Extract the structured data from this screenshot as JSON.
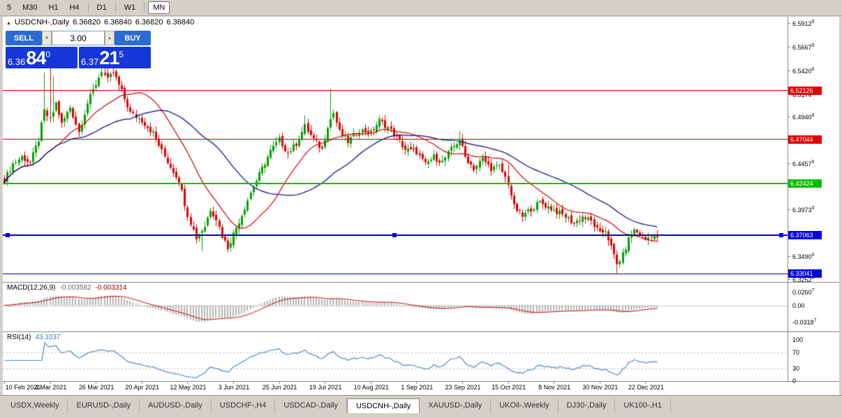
{
  "toolbar": {
    "items": [
      {
        "label": "5",
        "active": false,
        "sep_after": false
      },
      {
        "label": "M30",
        "active": false,
        "sep_after": false
      },
      {
        "label": "H1",
        "active": false,
        "sep_after": false
      },
      {
        "label": "H4",
        "active": false,
        "sep_after": true
      },
      {
        "label": "D1",
        "active": false,
        "sep_after": true
      },
      {
        "label": "W1",
        "active": false,
        "sep_after": true
      },
      {
        "label": "MN",
        "active": true,
        "sep_after": false
      }
    ]
  },
  "icons": {
    "chart_symbol": "▲",
    "volume_down": "▼",
    "volume_up": "▲"
  },
  "chart_header": {
    "symbol": "USDCNH-,Daily",
    "open": "6.36820",
    "high": "6.36840",
    "low": "6.36820",
    "close": "6.36840"
  },
  "trade_panel": {
    "sell_label": "SELL",
    "buy_label": "BUY",
    "volume": "3.00",
    "bid_prefix": "6.36",
    "bid_big": "84",
    "bid_sup": "0",
    "ask_prefix": "6.37",
    "ask_big": "21",
    "ask_sup": "5",
    "button_color": "#2b6bd5",
    "box_color": "#1536d8"
  },
  "tabs": [
    {
      "label": "USDX,Weekly",
      "active": false
    },
    {
      "label": "EURUSD-,Daily",
      "active": false
    },
    {
      "label": "AUDUSD-,Daily",
      "active": false
    },
    {
      "label": "USDCHF-,H4",
      "active": false
    },
    {
      "label": "USDCAD-,Daily",
      "active": false
    },
    {
      "label": "USDCNH-,Daily",
      "active": true
    },
    {
      "label": "XAUUSD-,Daily",
      "active": false
    },
    {
      "label": "UKOil-,Weekly",
      "active": false
    },
    {
      "label": "DJ30-,Daily",
      "active": false
    },
    {
      "label": "UK100-,H1",
      "active": false
    }
  ],
  "chart_data": {
    "type": "candlestick",
    "symbol": "USDCNH-",
    "timeframe": "Daily",
    "bars_total": 229,
    "last_close": 6.3684,
    "noise": 0.006,
    "price_range": [
      6.322,
      6.598
    ],
    "candle_colors": {
      "up": "#00a000",
      "down": "#e00000"
    },
    "ma": [
      {
        "period": 20,
        "color": "#cc0000"
      },
      {
        "period": 45,
        "color": "#000080"
      }
    ],
    "waypoints": [
      [
        0,
        6.428
      ],
      [
        3,
        6.445
      ],
      [
        6,
        6.452
      ],
      [
        9,
        6.446
      ],
      [
        12,
        6.47
      ],
      [
        14,
        6.5
      ],
      [
        16,
        6.49
      ],
      [
        18,
        6.508
      ],
      [
        20,
        6.486
      ],
      [
        23,
        6.504
      ],
      [
        26,
        6.478
      ],
      [
        29,
        6.508
      ],
      [
        32,
        6.528
      ],
      [
        34,
        6.542
      ],
      [
        36,
        6.532
      ],
      [
        38,
        6.54
      ],
      [
        41,
        6.52
      ],
      [
        44,
        6.498
      ],
      [
        48,
        6.49
      ],
      [
        52,
        6.477
      ],
      [
        55,
        6.458
      ],
      [
        58,
        6.442
      ],
      [
        61,
        6.428
      ],
      [
        64,
        6.392
      ],
      [
        67,
        6.368
      ],
      [
        70,
        6.38
      ],
      [
        72,
        6.398
      ],
      [
        74,
        6.388
      ],
      [
        76,
        6.37
      ],
      [
        78,
        6.358
      ],
      [
        80,
        6.372
      ],
      [
        83,
        6.392
      ],
      [
        86,
        6.415
      ],
      [
        90,
        6.44
      ],
      [
        93,
        6.458
      ],
      [
        96,
        6.47
      ],
      [
        99,
        6.456
      ],
      [
        102,
        6.466
      ],
      [
        105,
        6.484
      ],
      [
        108,
        6.47
      ],
      [
        111,
        6.46
      ],
      [
        113,
        6.485
      ],
      [
        115,
        6.498
      ],
      [
        117,
        6.478
      ],
      [
        120,
        6.468
      ],
      [
        124,
        6.48
      ],
      [
        128,
        6.477
      ],
      [
        131,
        6.49
      ],
      [
        134,
        6.483
      ],
      [
        137,
        6.472
      ],
      [
        140,
        6.46
      ],
      [
        144,
        6.457
      ],
      [
        147,
        6.444
      ],
      [
        150,
        6.452
      ],
      [
        153,
        6.447
      ],
      [
        156,
        6.46
      ],
      [
        159,
        6.47
      ],
      [
        161,
        6.452
      ],
      [
        164,
        6.44
      ],
      [
        167,
        6.45
      ],
      [
        170,
        6.44
      ],
      [
        173,
        6.442
      ],
      [
        176,
        6.425
      ],
      [
        178,
        6.4
      ],
      [
        181,
        6.39
      ],
      [
        184,
        6.398
      ],
      [
        187,
        6.405
      ],
      [
        190,
        6.4
      ],
      [
        193,
        6.395
      ],
      [
        196,
        6.39
      ],
      [
        199,
        6.383
      ],
      [
        202,
        6.39
      ],
      [
        205,
        6.385
      ],
      [
        208,
        6.372
      ],
      [
        210,
        6.376
      ],
      [
        212,
        6.358
      ],
      [
        214,
        6.34
      ],
      [
        216,
        6.35
      ],
      [
        218,
        6.366
      ],
      [
        220,
        6.376
      ],
      [
        222,
        6.371
      ],
      [
        224,
        6.366
      ],
      [
        226,
        6.371
      ],
      [
        228,
        6.3684
      ]
    ],
    "wick_overrides": {
      "14": {
        "h": 6.54
      },
      "16": {
        "h": 6.548
      },
      "17": {
        "h": 6.536
      },
      "34": {
        "h": 6.55
      },
      "36": {
        "h": 6.545
      },
      "69": {
        "l": 6.354
      },
      "78": {
        "l": 6.3528
      },
      "105": {
        "h": 6.495
      },
      "114": {
        "h": 6.523
      },
      "159": {
        "h": 6.479
      },
      "176": {
        "h": 6.444
      },
      "213": {
        "l": 6.346
      },
      "214": {
        "l": 6.331
      }
    },
    "hlines": [
      {
        "value": 6.52126,
        "label": "6.52126",
        "color": "#e00000",
        "width": 1,
        "selected": false
      },
      {
        "value": 6.47044,
        "label": "6.47044",
        "color": "#e00000",
        "width": 1,
        "selected": false
      },
      {
        "value": 6.42424,
        "label": "6.42424",
        "color": "#00c000",
        "width": 2,
        "selected": false
      },
      {
        "value": 6.37063,
        "label": "6.37063",
        "color": "#0000e0",
        "width": 2,
        "selected": true
      },
      {
        "value": 6.33041,
        "label": "6.33041",
        "color": "#0000e0",
        "width": 1,
        "selected": false
      }
    ],
    "price_ticks": [
      {
        "label": "6.5912",
        "sup": "0",
        "value": 6.5912
      },
      {
        "label": "6.5667",
        "sup": "0",
        "value": 6.5667
      },
      {
        "label": "6.5420",
        "sup": "0",
        "value": 6.542
      },
      {
        "label": "6.5174",
        "sup": "0",
        "value": 6.5174
      },
      {
        "label": "6.4940",
        "sup": "0",
        "value": 6.494
      },
      {
        "label": "6.4457",
        "sup": "0",
        "value": 6.4457
      },
      {
        "label": "6.3973",
        "sup": "0",
        "value": 6.3973
      },
      {
        "label": "6.3490",
        "sup": "0",
        "value": 6.349
      },
      {
        "label": "6.3252",
        "sup": "0",
        "value": 6.3252
      }
    ],
    "macd": {
      "label": "MACD(12,26,9)",
      "value_main": "-0.003582",
      "value_signal": "-0.003314",
      "fast": 12,
      "slow": 26,
      "signal": 9,
      "hist_color": "#b4b4b4",
      "signal_color": "#cc0000",
      "ticks": [
        {
          "label": "0.0260",
          "sup": "7",
          "value": 0.02607
        },
        {
          "label": "0.00",
          "sup": "",
          "value": 0
        },
        {
          "label": "-0.0318",
          "sup": "7",
          "value": -0.03187
        }
      ]
    },
    "rsi": {
      "label": "RSI(14)",
      "value": "43.1037",
      "period": 14,
      "color": "#4f86c8",
      "levels": [
        70,
        30
      ],
      "ticks": [
        {
          "label": "100",
          "value": 100
        },
        {
          "label": "70",
          "value": 70
        },
        {
          "label": "30",
          "value": 30
        },
        {
          "label": "0",
          "value": 0
        }
      ]
    },
    "date_labels": [
      {
        "i": 0,
        "label": "10 Feb 2021"
      },
      {
        "i": 16,
        "label": "4 Mar 2021"
      },
      {
        "i": 32,
        "label": "26 Mar 2021"
      },
      {
        "i": 48,
        "label": "20 Apr 2021"
      },
      {
        "i": 64,
        "label": "12 May 2021"
      },
      {
        "i": 80,
        "label": "3 Jun 2021"
      },
      {
        "i": 96,
        "label": "25 Jun 2021"
      },
      {
        "i": 112,
        "label": "19 Jul 2021"
      },
      {
        "i": 128,
        "label": "10 Aug 2021"
      },
      {
        "i": 144,
        "label": "1 Sep 2021"
      },
      {
        "i": 160,
        "label": "23 Sep 2021"
      },
      {
        "i": 176,
        "label": "15 Oct 2021"
      },
      {
        "i": 192,
        "label": "8 Nov 2021"
      },
      {
        "i": 208,
        "label": "30 Nov 2021"
      },
      {
        "i": 224,
        "label": "22 Dec 2021"
      }
    ]
  }
}
